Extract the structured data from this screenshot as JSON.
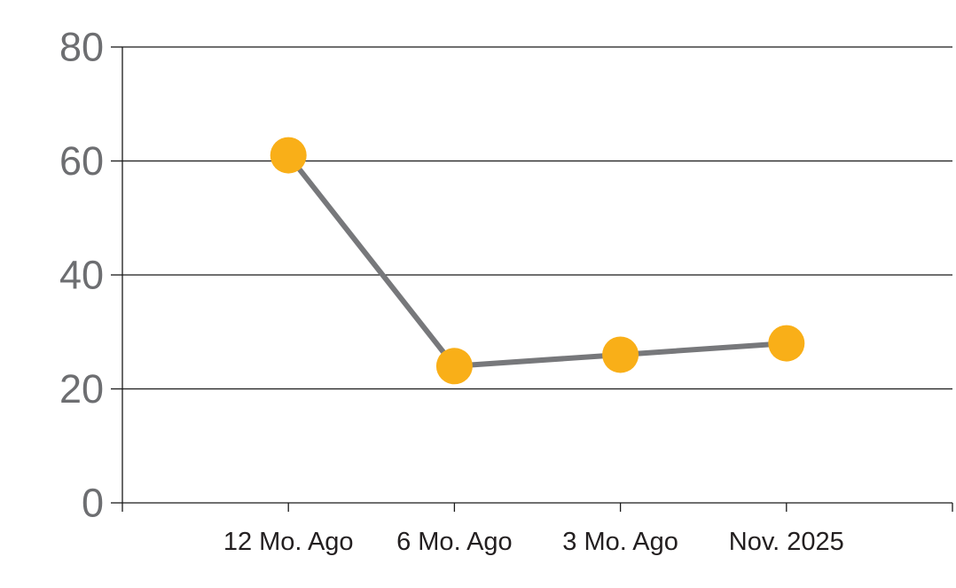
{
  "chart_data": {
    "type": "line",
    "categories": [
      "12 Mo. Ago",
      "6 Mo. Ago",
      "3 Mo. Ago",
      "Nov. 2025"
    ],
    "values": [
      61,
      24,
      26,
      28
    ],
    "title": "",
    "xlabel": "",
    "ylabel": "",
    "ylim": [
      0,
      80
    ],
    "yticks": [
      0,
      20,
      40,
      60,
      80
    ],
    "grid": true,
    "legend_position": "none",
    "marker_color": "#F9AF18",
    "line_color": "#77787B",
    "grid_color": "#1A1A1A",
    "axis_color": "#1A1A1A",
    "ytick_label_color": "#6D6E71",
    "xtick_label_color": "#231F20"
  }
}
